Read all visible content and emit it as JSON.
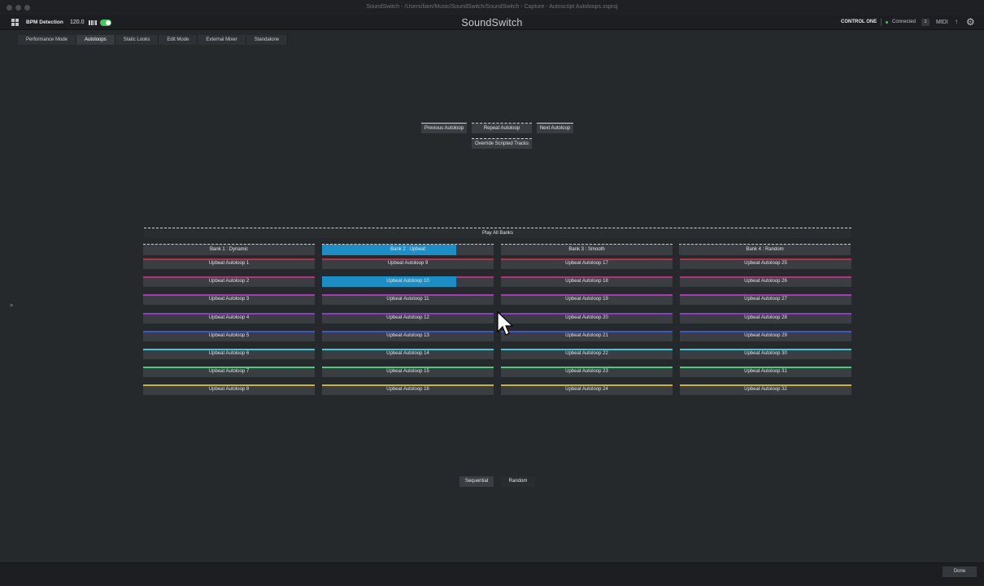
{
  "window": {
    "title": "SoundSwitch - /Users/liam/Music/SoundSwitch/SoundSwitch - Capture - Autoscript Autoloops.ssproj"
  },
  "topbar": {
    "bpm_label": "BPM Detection",
    "bpm_value": "120.0",
    "bpm_enabled": true,
    "app_name": "SoundSwitch",
    "device_name": "CONTROL ONE",
    "connection_status": "Connected",
    "connection_count": "1",
    "midi_label": "MIDI",
    "status_color": "#3ecb57"
  },
  "tabs": [
    {
      "label": "Performance Mode",
      "active": false
    },
    {
      "label": "Autoloops",
      "active": true
    },
    {
      "label": "Static Looks",
      "active": false
    },
    {
      "label": "Edit Mode",
      "active": false
    },
    {
      "label": "External Mixer",
      "active": false
    },
    {
      "label": "Standalone",
      "active": false
    }
  ],
  "controls": {
    "previous": "Previous Autoloop",
    "repeat": "Repeat Autoloop",
    "next": "Next Autoloop",
    "override": "Override Scripted Tracks"
  },
  "play_all": "Play All Banks",
  "banks": [
    {
      "label": "Bank 1 : Dynamic",
      "progress": 0
    },
    {
      "label": "Bank 2 : Upbeat",
      "progress": 0.78
    },
    {
      "label": "Bank 3 : Smooth",
      "progress": 0
    },
    {
      "label": "Bank 4 : Random",
      "progress": 0
    }
  ],
  "row_colors": [
    "#b2314a",
    "#b5317a",
    "#a93ab7",
    "#8a3fc2",
    "#3b55c6",
    "#3fc7d8",
    "#46cf7a",
    "#c9b43a"
  ],
  "autoloops": [
    [
      "Upbeat Autoloop 1",
      "Upbeat Autoloop 2",
      "Upbeat Autoloop 3",
      "Upbeat Autoloop 4",
      "Upbeat Autoloop 5",
      "Upbeat Autoloop 6",
      "Upbeat Autoloop 7",
      "Upbeat Autoloop 8"
    ],
    [
      "Upbeat Autoloop 9",
      "Upbeat Autoloop 10",
      "Upbeat Autoloop 11",
      "Upbeat Autoloop 12",
      "Upbeat Autoloop 13",
      "Upbeat Autoloop 14",
      "Upbeat Autoloop 15",
      "Upbeat Autoloop 16"
    ],
    [
      "Upbeat Autoloop 17",
      "Upbeat Autoloop 18",
      "Upbeat Autoloop 19",
      "Upbeat Autoloop 20",
      "Upbeat Autoloop 21",
      "Upbeat Autoloop 22",
      "Upbeat Autoloop 23",
      "Upbeat Autoloop 24"
    ],
    [
      "Upbeat Autoloop 25",
      "Upbeat Autoloop 26",
      "Upbeat Autoloop 27",
      "Upbeat Autoloop 28",
      "Upbeat Autoloop 29",
      "Upbeat Autoloop 30",
      "Upbeat Autoloop 31",
      "Upbeat Autoloop 32"
    ]
  ],
  "active_loop": {
    "bank": 1,
    "index": 1,
    "progress": 0.78
  },
  "accent_color": "#1b8ec6",
  "playback_modes": [
    {
      "label": "Sequential",
      "selected": true
    },
    {
      "label": "Random",
      "selected": false
    }
  ],
  "footer": {
    "done": "Done"
  }
}
